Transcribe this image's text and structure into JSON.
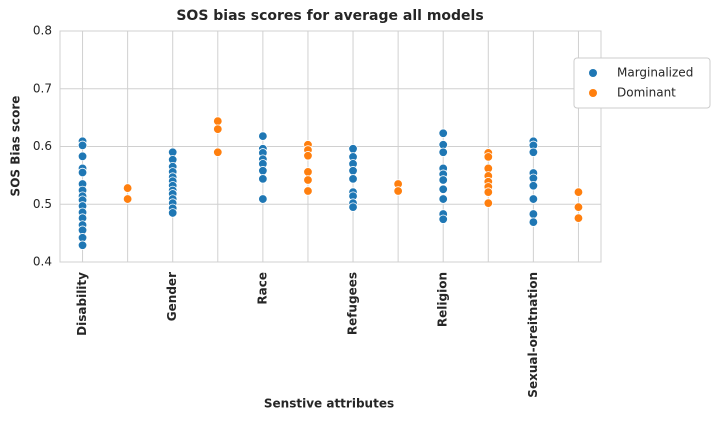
{
  "chart_data": {
    "type": "strip",
    "title": "SOS bias scores for average all models",
    "xlabel": "Senstive attributes",
    "ylabel": "SOS Bias score",
    "categories": [
      "Disability",
      null,
      "Gender",
      null,
      "Race",
      null,
      "Refugees",
      null,
      "Religion",
      null,
      "Sexual-oreitnation",
      null
    ],
    "series": [
      {
        "name": "Marginalized",
        "color": "#1f77b4",
        "values": [
          [
            0.609,
            0.602,
            0.583,
            0.562,
            0.555,
            0.535,
            0.524,
            0.514,
            0.507,
            0.497,
            0.486,
            0.476,
            0.464,
            0.455,
            0.442,
            0.429
          ],
          null,
          [
            0.59,
            0.577,
            0.565,
            0.556,
            0.547,
            0.54,
            0.532,
            0.524,
            0.518,
            0.509,
            0.502,
            0.493,
            0.485
          ],
          null,
          [
            0.618,
            0.596,
            0.589,
            0.578,
            0.57,
            0.558,
            0.544,
            0.509
          ],
          null,
          [
            0.596,
            0.582,
            0.57,
            0.558,
            0.544,
            0.521,
            0.514,
            0.502,
            0.495
          ],
          null,
          [
            0.623,
            0.603,
            0.59,
            0.562,
            0.552,
            0.542,
            0.526,
            0.509,
            0.483,
            0.474
          ],
          null,
          [
            0.609,
            0.602,
            0.59,
            0.554,
            0.545,
            0.532,
            0.509,
            0.483,
            0.469
          ],
          null
        ]
      },
      {
        "name": "Dominant",
        "color": "#ff7f0e",
        "values": [
          null,
          [
            0.528,
            0.509
          ],
          null,
          [
            0.644,
            0.63,
            0.59
          ],
          null,
          [
            0.603,
            0.594,
            0.584,
            0.556,
            0.542,
            0.523
          ],
          null,
          [
            0.535,
            0.523
          ],
          null,
          [
            0.589,
            0.582,
            0.562,
            0.549,
            0.539,
            0.53,
            0.521,
            0.502
          ],
          null,
          [
            0.521,
            0.495,
            0.476
          ]
        ]
      }
    ],
    "ylim": [
      0.4,
      0.8
    ],
    "yticks": [
      0.4,
      0.5,
      0.6,
      0.7,
      0.8
    ],
    "grid": true,
    "legend": "upper right"
  }
}
